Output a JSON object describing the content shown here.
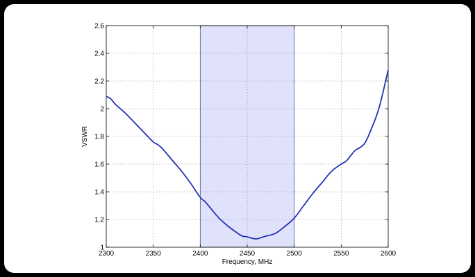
{
  "chart_data": {
    "type": "line",
    "title": "",
    "xlabel": "Frequency, MHz",
    "ylabel": "VSWR",
    "xlim": [
      2300,
      2600
    ],
    "ylim": [
      1,
      2.6
    ],
    "xticks": [
      2300,
      2350,
      2400,
      2450,
      2500,
      2550,
      2600
    ],
    "yticks": [
      1,
      1.2,
      1.4,
      1.6,
      1.8,
      2,
      2.2,
      2.4,
      2.6
    ],
    "xtick_labels": [
      "2300",
      "2350",
      "2400",
      "2450",
      "2500",
      "2550",
      "2600"
    ],
    "ytick_labels": [
      "1",
      "1.2",
      "1.4",
      "1.6",
      "1.8",
      "2",
      "2.2",
      "2.4",
      "2.6"
    ],
    "grid": true,
    "highlight_band": {
      "x_start": 2400,
      "x_end": 2500,
      "color": "#e0e2fb"
    },
    "series": [
      {
        "color": "#2431b8",
        "x": [
          2300,
          2305,
          2310,
          2320,
          2330,
          2340,
          2350,
          2355,
          2360,
          2370,
          2380,
          2390,
          2400,
          2405,
          2410,
          2420,
          2430,
          2440,
          2445,
          2450,
          2455,
          2460,
          2465,
          2470,
          2480,
          2490,
          2500,
          2510,
          2520,
          2530,
          2540,
          2550,
          2555,
          2560,
          2565,
          2570,
          2575,
          2580,
          2590,
          2600
        ],
        "y": [
          2.09,
          2.07,
          2.03,
          1.97,
          1.9,
          1.83,
          1.76,
          1.74,
          1.71,
          1.63,
          1.55,
          1.46,
          1.36,
          1.33,
          1.29,
          1.21,
          1.15,
          1.1,
          1.08,
          1.075,
          1.065,
          1.06,
          1.07,
          1.08,
          1.1,
          1.15,
          1.21,
          1.3,
          1.39,
          1.47,
          1.55,
          1.6,
          1.62,
          1.66,
          1.7,
          1.72,
          1.75,
          1.82,
          2.0,
          2.28
        ]
      }
    ]
  }
}
